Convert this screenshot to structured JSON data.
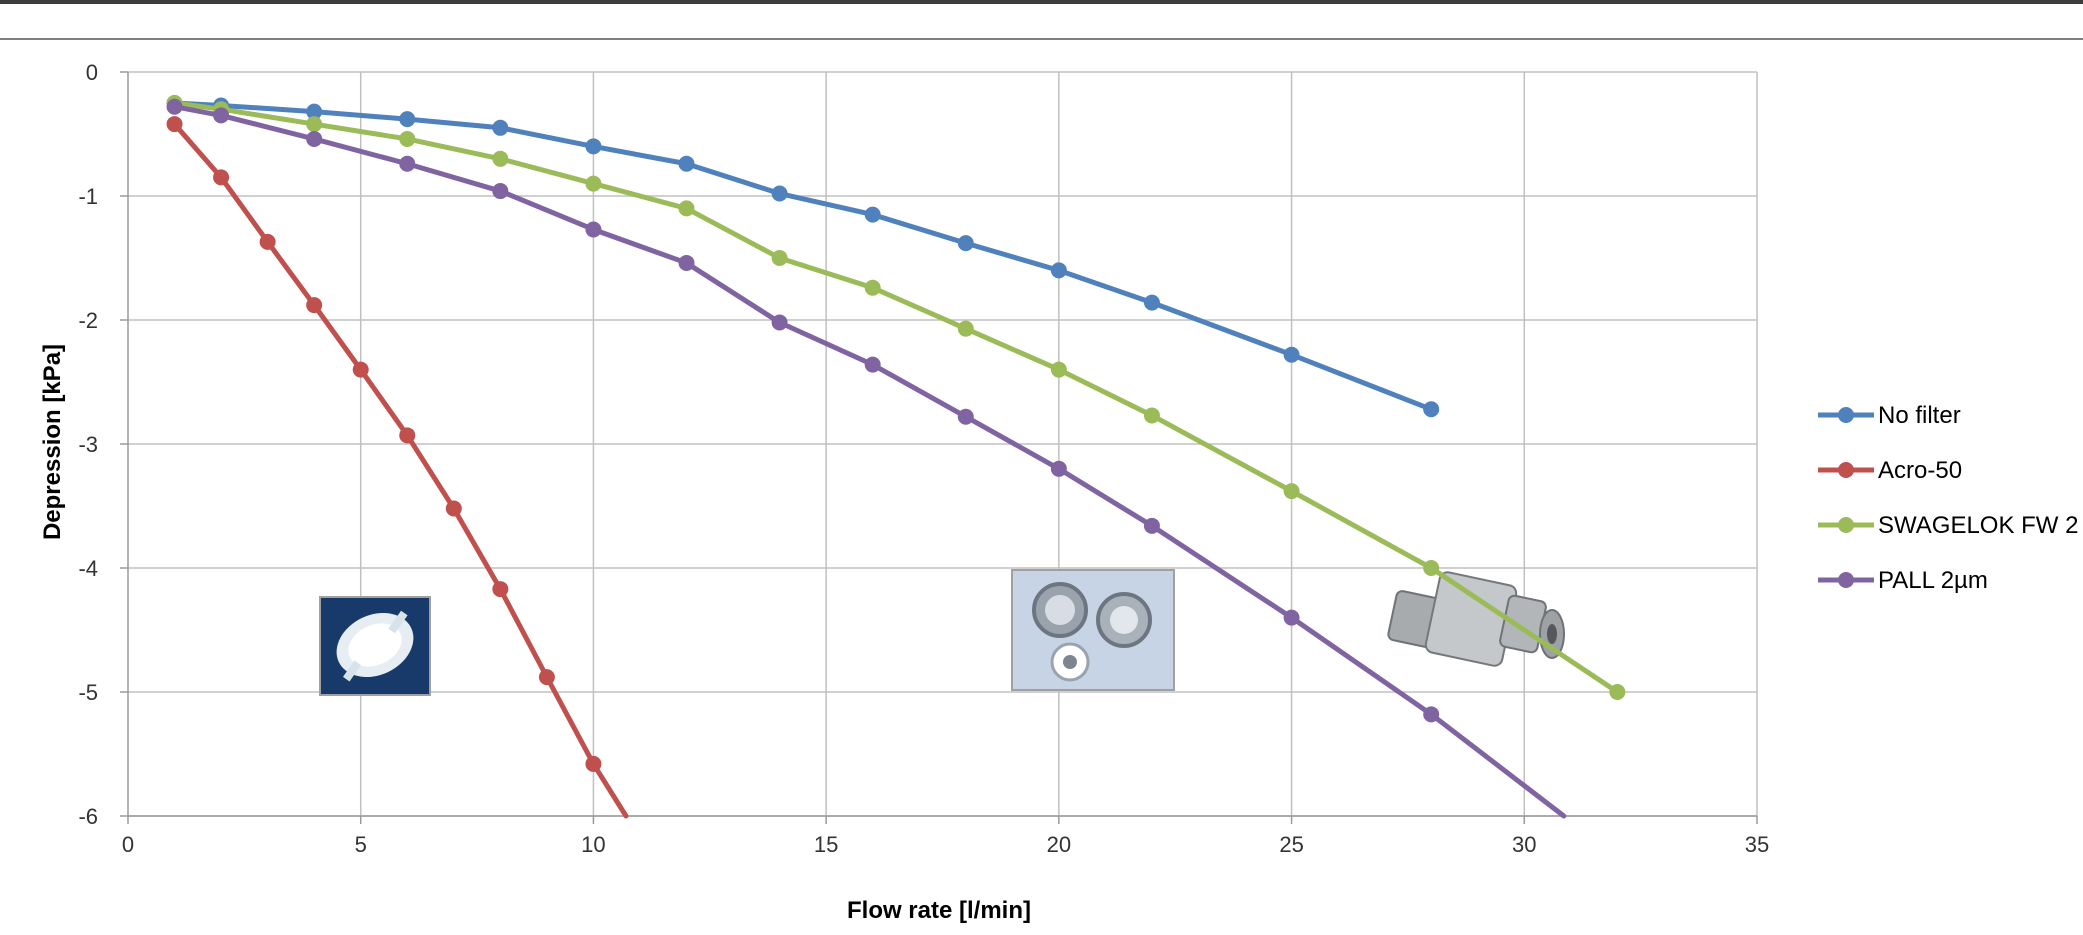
{
  "chart_data": {
    "type": "line",
    "title": "",
    "xlabel": "Flow rate [l/min]",
    "ylabel": "Depression [kPa]",
    "xlim": [
      0,
      35
    ],
    "ylim": [
      -6,
      0
    ],
    "xticks": [
      0,
      5,
      10,
      15,
      20,
      25,
      30,
      35
    ],
    "yticks": [
      0,
      -1,
      -2,
      -3,
      -4,
      -5,
      -6
    ],
    "grid": true,
    "legend_position": "right",
    "series": [
      {
        "name": "No filter",
        "color": "#4F81BD",
        "x": [
          1,
          2,
          4,
          6,
          8,
          10,
          12,
          14,
          16,
          18,
          20,
          22,
          25,
          28
        ],
        "y": [
          -0.25,
          -0.27,
          -0.32,
          -0.38,
          -0.45,
          -0.6,
          -0.74,
          -0.98,
          -1.15,
          -1.38,
          -1.6,
          -1.86,
          -2.28,
          -2.72
        ]
      },
      {
        "name": "Acro-50",
        "color": "#C0504D",
        "x": [
          1,
          2,
          3,
          4,
          5,
          6,
          7,
          8,
          9,
          10,
          10.7
        ],
        "y": [
          -0.42,
          -0.85,
          -1.37,
          -1.88,
          -2.4,
          -2.93,
          -3.52,
          -4.17,
          -4.88,
          -5.58,
          -6.0
        ]
      },
      {
        "name": "SWAGELOK FW 2",
        "color": "#9BBB59",
        "x": [
          1,
          2,
          4,
          6,
          8,
          10,
          12,
          14,
          16,
          18,
          20,
          22,
          25,
          28,
          32
        ],
        "y": [
          -0.25,
          -0.3,
          -0.42,
          -0.54,
          -0.7,
          -0.9,
          -1.1,
          -1.5,
          -1.74,
          -2.07,
          -2.4,
          -2.77,
          -3.38,
          -4.0,
          -5.0
        ]
      },
      {
        "name": "PALL 2µm",
        "color": "#8064A2",
        "x": [
          1,
          2,
          4,
          6,
          8,
          10,
          12,
          14,
          16,
          18,
          20,
          22,
          25,
          28,
          30.85
        ],
        "y": [
          -0.28,
          -0.35,
          -0.54,
          -0.74,
          -0.96,
          -1.27,
          -1.54,
          -2.02,
          -2.36,
          -2.78,
          -3.2,
          -3.66,
          -4.4,
          -5.18,
          -6.0
        ]
      }
    ],
    "images": [
      "syringe-filter-photo",
      "filter-disc-photo",
      "inline-filter-fitting-photo"
    ]
  }
}
